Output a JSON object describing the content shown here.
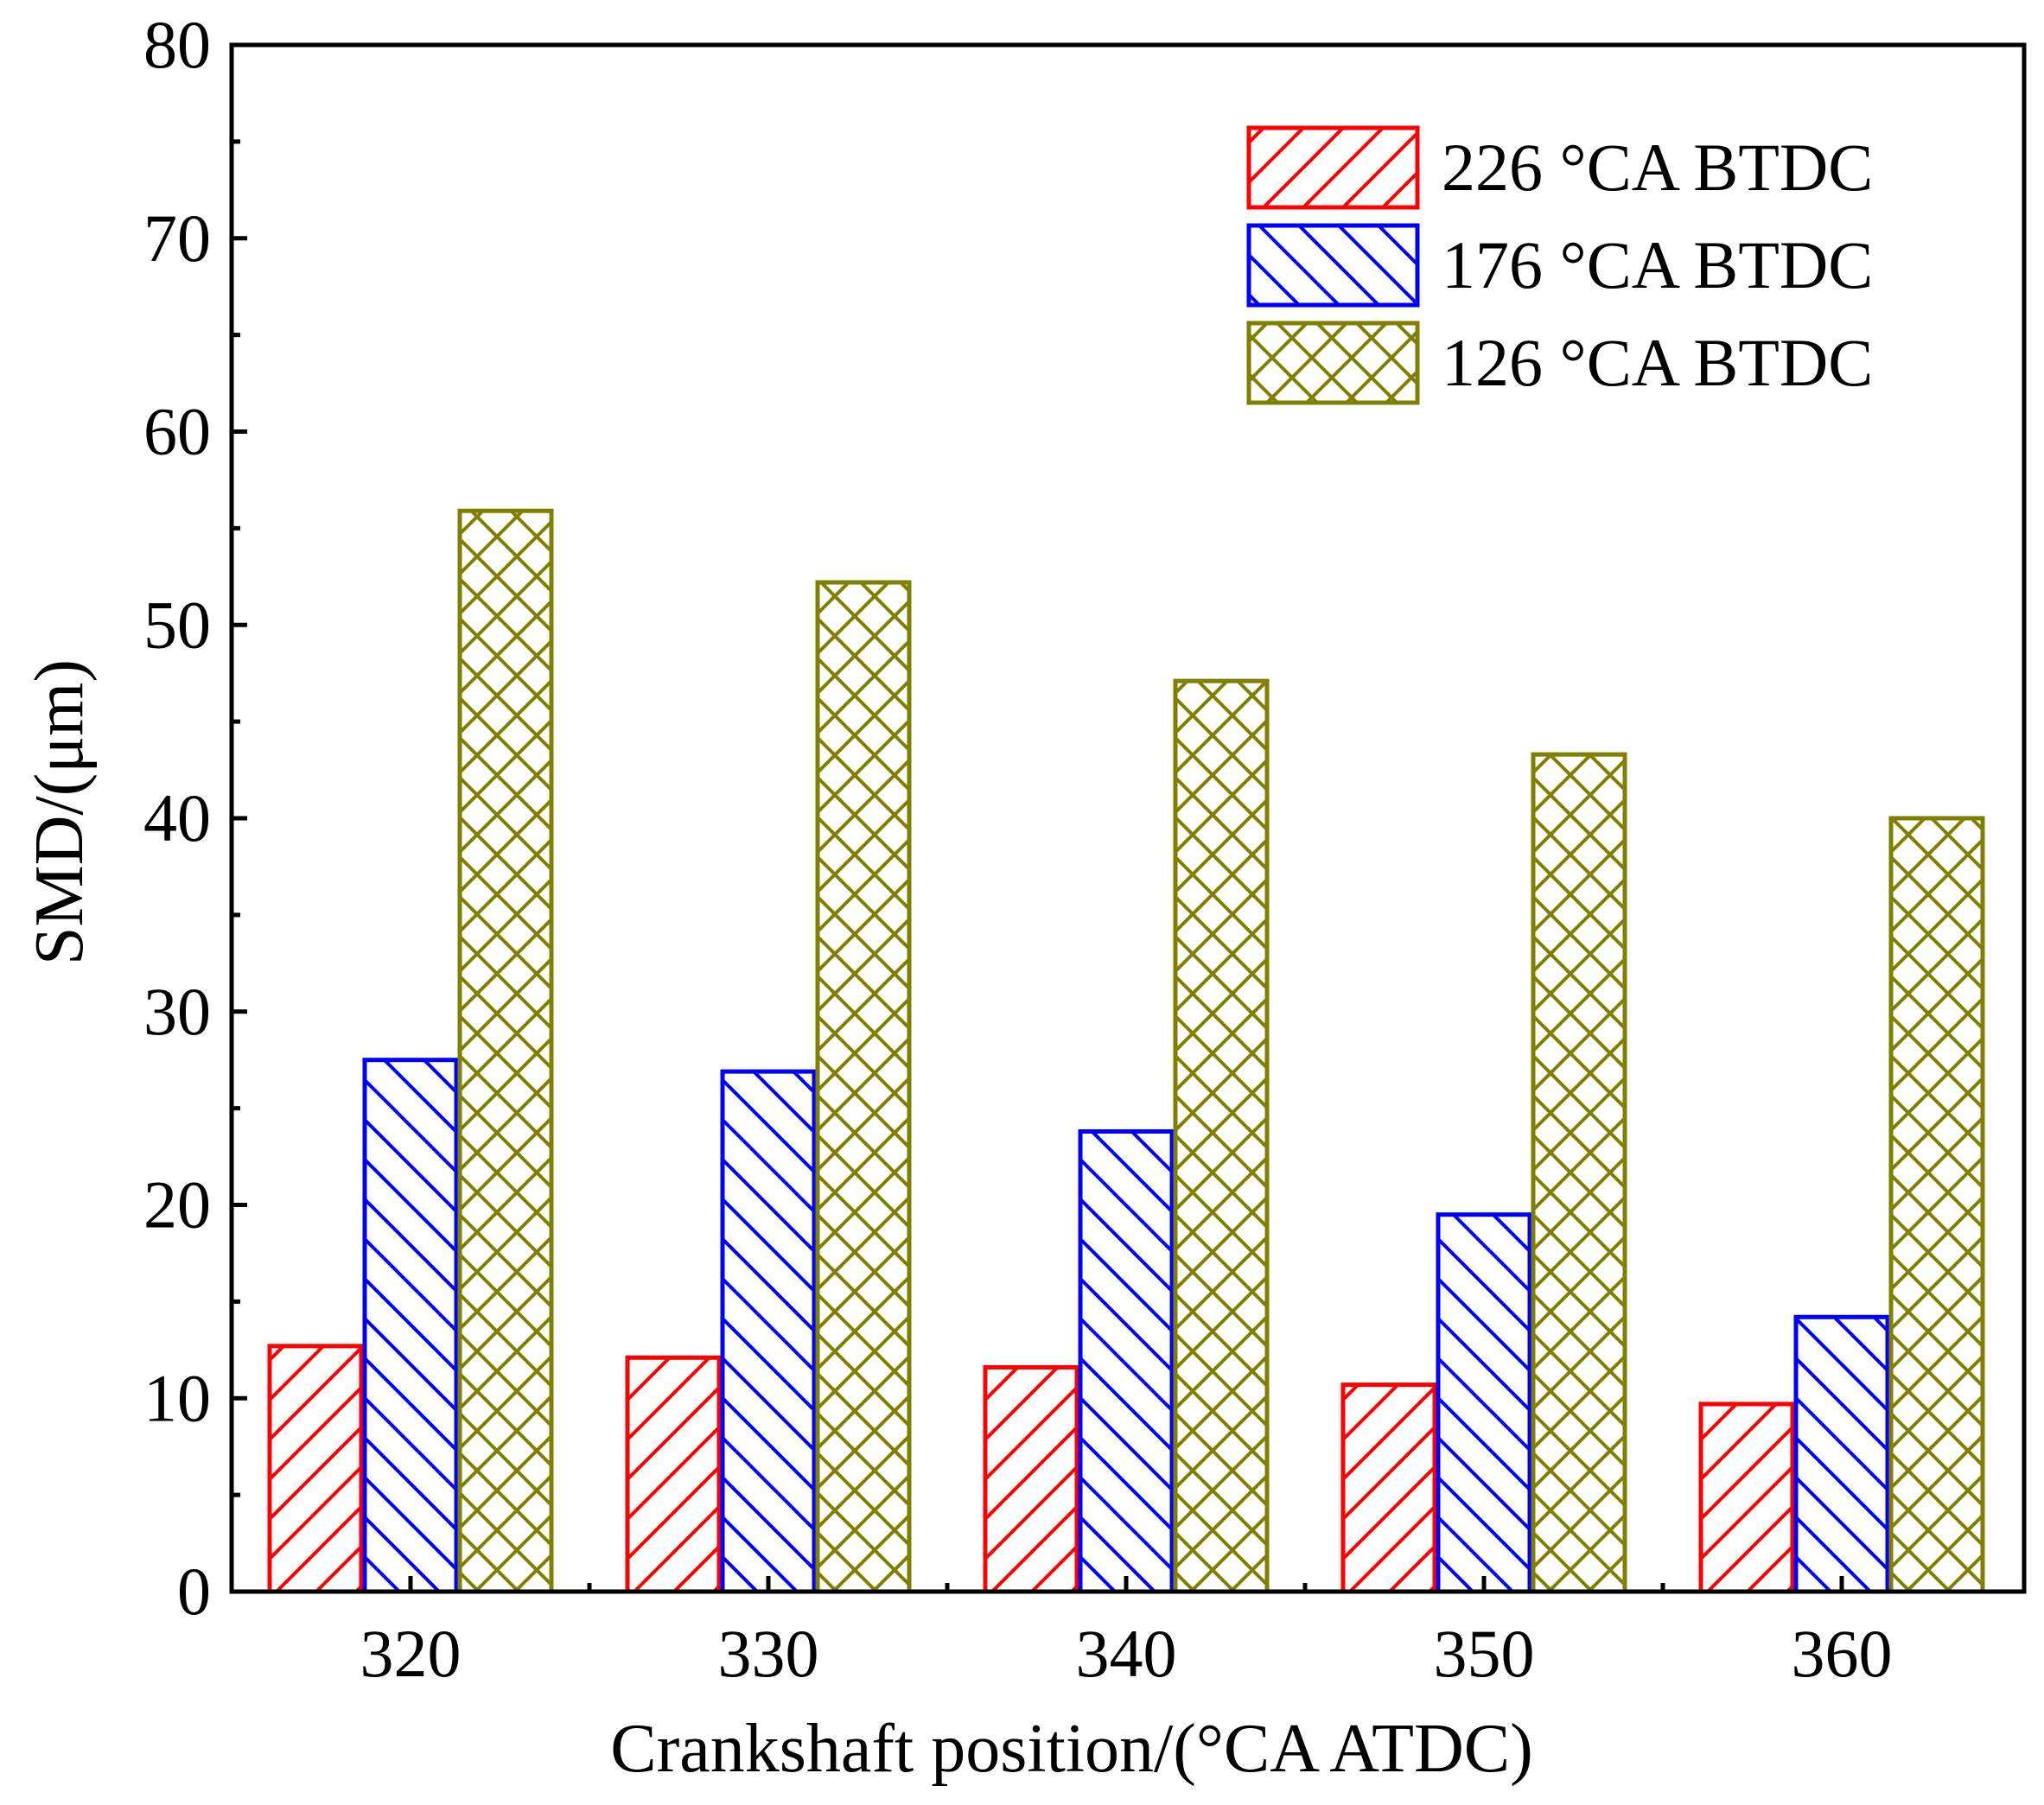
{
  "chart_data": {
    "type": "bar",
    "title": "",
    "xlabel": "Crankshaft position/(°CA ATDC)",
    "ylabel": "SMD/(μm)",
    "categories": [
      "320",
      "330",
      "340",
      "350",
      "360"
    ],
    "ylim": [
      0,
      80
    ],
    "yticks": [
      0,
      10,
      20,
      30,
      40,
      50,
      60,
      70,
      80
    ],
    "grid": false,
    "legend_position": "top-right",
    "series": [
      {
        "name": "226 °CA BTDC",
        "color": "#ff0000",
        "pattern": "hatch-forward",
        "values": [
          12.7,
          12.1,
          11.6,
          10.7,
          9.7
        ]
      },
      {
        "name": "176 °CA BTDC",
        "color": "#0000ff",
        "pattern": "hatch-backward",
        "values": [
          27.5,
          26.9,
          23.8,
          19.5,
          14.2
        ]
      },
      {
        "name": "126 °CA BTDC",
        "color": "#808000",
        "pattern": "crosshatch",
        "values": [
          55.9,
          52.2,
          47.1,
          43.3,
          40.0
        ]
      }
    ]
  }
}
